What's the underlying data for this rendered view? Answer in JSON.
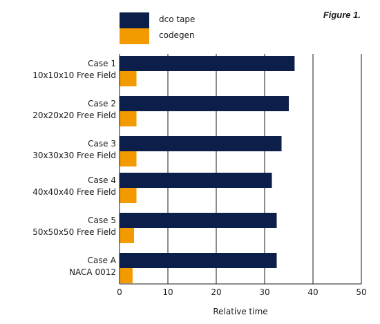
{
  "figure_label": "Figure 1.",
  "colors": {
    "dco_tape": "#0c1f4a",
    "codegen": "#f29a00",
    "grid": "#1a1a1a"
  },
  "chart_data": {
    "type": "bar",
    "orientation": "horizontal",
    "categories": [
      {
        "line1": "Case 1",
        "line2": "10x10x10 Free Field"
      },
      {
        "line1": "Case 2",
        "line2": "20x20x20 Free Field"
      },
      {
        "line1": "Case 3",
        "line2": "30x30x30 Free Field"
      },
      {
        "line1": "Case 4",
        "line2": "40x40x40 Free Field"
      },
      {
        "line1": "Case 5",
        "line2": "50x50x50 Free Field"
      },
      {
        "line1": "Case A",
        "line2": "NACA 0012"
      }
    ],
    "series": [
      {
        "name": "dco tape",
        "values": [
          36.2,
          35.0,
          33.5,
          31.5,
          32.5,
          32.5
        ]
      },
      {
        "name": "codegen",
        "values": [
          3.5,
          3.5,
          3.5,
          3.5,
          3.0,
          2.7
        ]
      }
    ],
    "xlabel": "Relative time",
    "ylabel": "",
    "xlim": [
      0,
      50
    ],
    "xticks": [
      0,
      10,
      20,
      30,
      40,
      50
    ],
    "grid": "vertical",
    "legend_position": "top-left"
  }
}
